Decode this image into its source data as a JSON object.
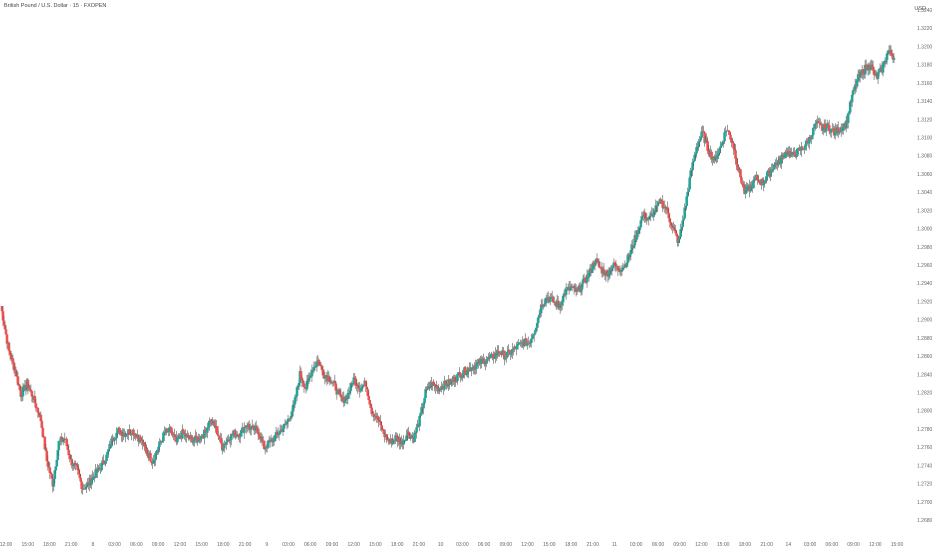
{
  "chart_title": "British Pound / U.S. Dollar · 15 · FXOPEN",
  "currency_label": "USD",
  "colors": {
    "up": "#26a69a",
    "down": "#ef5350",
    "wick": "#555555",
    "axis_text": "#666666"
  },
  "chart_data": {
    "type": "candlestick",
    "title": "British Pound / U.S. Dollar · 15 · FXOPEN",
    "ylim": [
      1.268,
      1.324
    ],
    "y_ticks": [
      "1.26800",
      "1.27000",
      "1.27200",
      "1.27400",
      "1.27600",
      "1.27800",
      "1.28000",
      "1.28200",
      "1.28400",
      "1.28600",
      "1.28800",
      "1.29000",
      "1.29200",
      "1.29400",
      "1.29600",
      "1.29800",
      "1.30000",
      "1.30200",
      "1.30400",
      "1.30600",
      "1.30800",
      "1.31000",
      "1.31200",
      "1.31400",
      "1.31600",
      "1.31800",
      "1.32000",
      "1.32200",
      "1.32400"
    ],
    "x_ticks": [
      "12:00",
      "15:00",
      "18:00",
      "21:00",
      "8",
      "03:00",
      "06:00",
      "09:00",
      "12:00",
      "15:00",
      "18:00",
      "21:00",
      "9",
      "03:00",
      "06:00",
      "09:00",
      "12:00",
      "15:00",
      "18:00",
      "21:00",
      "10",
      "03:00",
      "06:00",
      "09:00",
      "12:00",
      "15:00",
      "18:00",
      "21:00",
      "11",
      "03:00",
      "06:00",
      "09:00",
      "12:00",
      "15:00",
      "18:00",
      "21:00",
      "14",
      "03:00",
      "06:00",
      "09:00",
      "12:00",
      "15:00"
    ],
    "anchors": [
      [
        0,
        1.2915
      ],
      [
        8,
        1.2865
      ],
      [
        14,
        1.2845
      ],
      [
        20,
        1.2818
      ],
      [
        26,
        1.283
      ],
      [
        32,
        1.2815
      ],
      [
        40,
        1.279
      ],
      [
        46,
        1.2745
      ],
      [
        52,
        1.272
      ],
      [
        58,
        1.2765
      ],
      [
        64,
        1.277
      ],
      [
        70,
        1.2745
      ],
      [
        76,
        1.2735
      ],
      [
        82,
        1.2715
      ],
      [
        88,
        1.272
      ],
      [
        94,
        1.273
      ],
      [
        100,
        1.2738
      ],
      [
        106,
        1.275
      ],
      [
        112,
        1.277
      ],
      [
        118,
        1.2778
      ],
      [
        124,
        1.2775
      ],
      [
        132,
        1.2778
      ],
      [
        140,
        1.2768
      ],
      [
        146,
        1.2755
      ],
      [
        152,
        1.2745
      ],
      [
        158,
        1.276
      ],
      [
        164,
        1.2775
      ],
      [
        170,
        1.2778
      ],
      [
        176,
        1.2765
      ],
      [
        182,
        1.2775
      ],
      [
        188,
        1.277
      ],
      [
        196,
        1.2768
      ],
      [
        204,
        1.2775
      ],
      [
        210,
        1.279
      ],
      [
        216,
        1.278
      ],
      [
        222,
        1.276
      ],
      [
        228,
        1.277
      ],
      [
        234,
        1.2775
      ],
      [
        240,
        1.2775
      ],
      [
        246,
        1.2785
      ],
      [
        252,
        1.278
      ],
      [
        258,
        1.2778
      ],
      [
        264,
        1.276
      ],
      [
        270,
        1.2765
      ],
      [
        278,
        1.2775
      ],
      [
        286,
        1.2785
      ],
      [
        294,
        1.2805
      ],
      [
        300,
        1.284
      ],
      [
        306,
        1.2825
      ],
      [
        312,
        1.2845
      ],
      [
        318,
        1.2855
      ],
      [
        324,
        1.284
      ],
      [
        330,
        1.2835
      ],
      [
        336,
        1.2825
      ],
      [
        342,
        1.281
      ],
      [
        348,
        1.2818
      ],
      [
        354,
        1.2835
      ],
      [
        360,
        1.2825
      ],
      [
        366,
        1.283
      ],
      [
        372,
        1.28
      ],
      [
        378,
        1.279
      ],
      [
        384,
        1.2775
      ],
      [
        390,
        1.2765
      ],
      [
        396,
        1.277
      ],
      [
        402,
        1.2765
      ],
      [
        408,
        1.2775
      ],
      [
        414,
        1.277
      ],
      [
        420,
        1.279
      ],
      [
        426,
        1.282
      ],
      [
        432,
        1.283
      ],
      [
        438,
        1.2825
      ],
      [
        444,
        1.2828
      ],
      [
        452,
        1.2832
      ],
      [
        460,
        1.284
      ],
      [
        468,
        1.2845
      ],
      [
        476,
        1.285
      ],
      [
        484,
        1.2855
      ],
      [
        492,
        1.2858
      ],
      [
        500,
        1.2865
      ],
      [
        506,
        1.286
      ],
      [
        512,
        1.2865
      ],
      [
        518,
        1.287
      ],
      [
        524,
        1.2875
      ],
      [
        530,
        1.2875
      ],
      [
        536,
        1.289
      ],
      [
        542,
        1.2915
      ],
      [
        548,
        1.2925
      ],
      [
        554,
        1.292
      ],
      [
        560,
        1.2915
      ],
      [
        566,
        1.293
      ],
      [
        572,
        1.2935
      ],
      [
        578,
        1.293
      ],
      [
        584,
        1.294
      ],
      [
        590,
        1.295
      ],
      [
        596,
        1.2965
      ],
      [
        602,
        1.2955
      ],
      [
        608,
        1.295
      ],
      [
        614,
        1.296
      ],
      [
        620,
        1.2955
      ],
      [
        626,
        1.296
      ],
      [
        632,
        1.2975
      ],
      [
        638,
        1.2995
      ],
      [
        644,
        1.3015
      ],
      [
        650,
        1.301
      ],
      [
        656,
        1.302
      ],
      [
        662,
        1.303
      ],
      [
        668,
        1.302
      ],
      [
        674,
        1.3
      ],
      [
        680,
        1.2985
      ],
      [
        686,
        1.302
      ],
      [
        692,
        1.306
      ],
      [
        698,
        1.309
      ],
      [
        704,
        1.3105
      ],
      [
        710,
        1.3085
      ],
      [
        716,
        1.3075
      ],
      [
        722,
        1.309
      ],
      [
        728,
        1.311
      ],
      [
        734,
        1.3095
      ],
      [
        740,
        1.3065
      ],
      [
        746,
        1.304
      ],
      [
        752,
        1.3045
      ],
      [
        758,
        1.3055
      ],
      [
        764,
        1.305
      ],
      [
        770,
        1.306
      ],
      [
        776,
        1.307
      ],
      [
        782,
        1.3075
      ],
      [
        788,
        1.3085
      ],
      [
        794,
        1.308
      ],
      [
        800,
        1.3085
      ],
      [
        806,
        1.309
      ],
      [
        812,
        1.31
      ],
      [
        818,
        1.3115
      ],
      [
        824,
        1.311
      ],
      [
        830,
        1.3112
      ],
      [
        836,
        1.3105
      ],
      [
        842,
        1.311
      ],
      [
        848,
        1.3115
      ],
      [
        854,
        1.3145
      ],
      [
        860,
        1.3165
      ],
      [
        866,
        1.3175
      ],
      [
        872,
        1.318
      ],
      [
        878,
        1.3165
      ],
      [
        884,
        1.3175
      ],
      [
        890,
        1.3195
      ],
      [
        896,
        1.3188
      ]
    ]
  }
}
